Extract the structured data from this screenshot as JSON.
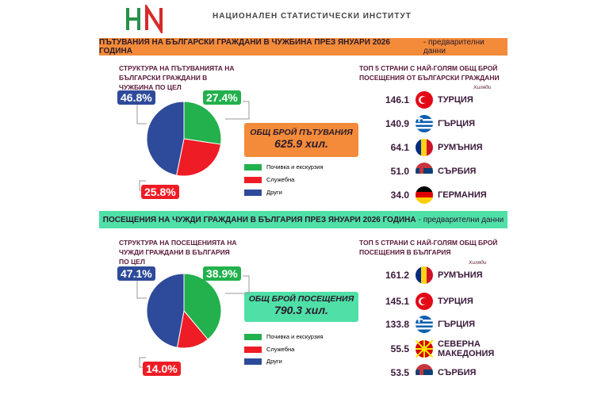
{
  "header": {
    "title": "НАЦИОНАЛЕН СТАТИСТИЧЕСКИ ИНСТИТУТ"
  },
  "sections": [
    {
      "title": "ПЪТУВАНИЯ НА БЪЛГАРСКИ ГРАЖДАНИ В ЧУЖБИНА ПРЕЗ ЯНУАРИ 2026 ГОДИНА",
      "note": "- предварителни данни",
      "total_label": "ОБЩ БРОЙ ПЪТУВАНИЯ",
      "total": "625.9 хил.",
      "countries_title": "ТОП 5 СТРАНИ С НАЙ-ГОЛЯМ ОБЩ БРОЙ ПОСЕЩЕНИЯ ОТ БЪЛГАРСКИ ГРАЖДАНИ",
      "unit": "Хиляди",
      "countries": [
        {
          "value": "146.1",
          "name": "ТУРЦИЯ"
        },
        {
          "value": "140.9",
          "name": "ГЪРЦИЯ"
        },
        {
          "value": "64.1",
          "name": "РУМЪНИЯ"
        },
        {
          "value": "51.0",
          "name": "СЪРБИЯ"
        },
        {
          "value": "34.0",
          "name": "ГЕРМАНИЯ"
        }
      ]
    },
    {
      "title": "ПОСЕЩЕНИЯ НА ЧУЖДИ ГРАЖДАНИ В БЪЛГАРИЯ ПРЕЗ ЯНУАРИ 2026 ГОДИНА",
      "note": "- предварителни данни",
      "total_label": "ОБЩ БРОЙ ПОСЕЩЕНИЯ",
      "total": "790.3 хил.",
      "countries_title": "ТОП 5 СТРАНИ С НАЙ-ГОЛЯМ ОБЩ БРОЙ ПОСЕЩЕНИЯ В БЪЛГАРИЯ",
      "unit": "Хиляди",
      "countries": [
        {
          "value": "161.2",
          "name": "РУМЪНИЯ"
        },
        {
          "value": "145.1",
          "name": "ТУРЦИЯ"
        },
        {
          "value": "133.8",
          "name": "ГЪРЦИЯ"
        },
        {
          "value": "55.5",
          "name": "СЕВЕРНА МАКЕДОНИЯ"
        },
        {
          "value": "53.5",
          "name": "СЪРБИЯ"
        }
      ]
    }
  ],
  "chart_data": [
    {
      "type": "pie",
      "title": "СТРУКТУРА НА ПЪТУВАНИЯТА НА БЪЛГАРСКИ ГРАЖДАНИ В ЧУЖБИНА ПО ЦЕЛ",
      "categories": [
        "Почивка и екскурзия",
        "Служебна",
        "Други"
      ],
      "values": [
        27.4,
        25.8,
        46.8
      ],
      "value_labels": [
        "27.4%",
        "25.8%",
        "46.8%"
      ],
      "colors": [
        "#22b14c",
        "#ee1c25",
        "#2e4a9a"
      ]
    },
    {
      "type": "pie",
      "title": "СТРУКТУРА НА ПОСЕЩЕНИЯТА НА ЧУЖДИ ГРАЖДАНИ В БЪЛГАРИЯ ПО ЦЕЛ",
      "categories": [
        "Почивка и екскурзия",
        "Служебна",
        "Други"
      ],
      "values": [
        38.9,
        14.0,
        47.1
      ],
      "value_labels": [
        "38.9%",
        "14.0%",
        "47.1%"
      ],
      "colors": [
        "#22b14c",
        "#ee1c25",
        "#2e4a9a"
      ]
    }
  ]
}
